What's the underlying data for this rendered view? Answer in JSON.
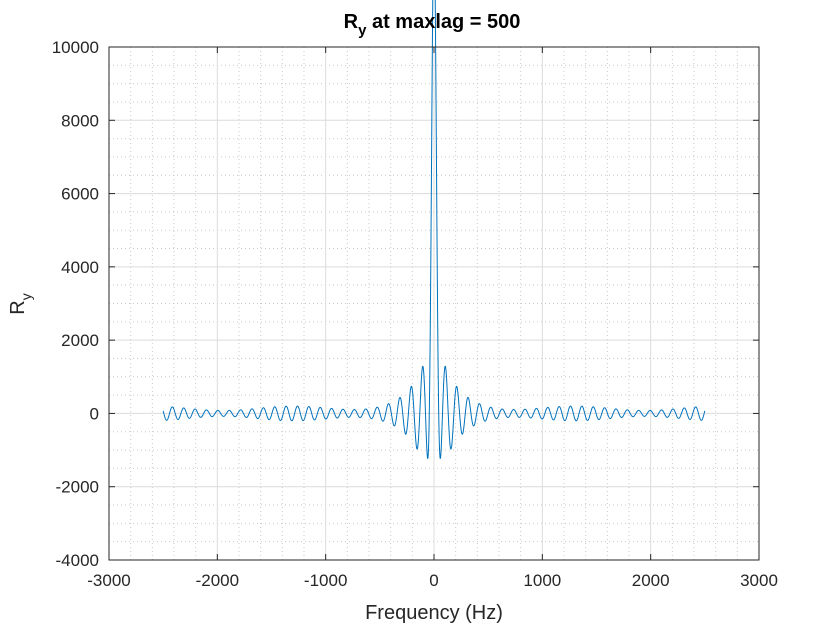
{
  "chart_data": {
    "type": "line",
    "title": {
      "main": "R",
      "sub": "y",
      "rest": " at maxlag = 500"
    },
    "xlabel": "Frequency (Hz)",
    "ylabel": {
      "main": "R",
      "sub": "y"
    },
    "xlim": [
      -3000,
      3000
    ],
    "ylim": [
      -4000,
      10000
    ],
    "xticks": [
      -3000,
      -2000,
      -1000,
      0,
      1000,
      2000,
      3000
    ],
    "xtick_labels": [
      "-3000",
      "-2000",
      "-1000",
      "0",
      "1000",
      "2000",
      "3000"
    ],
    "yticks": [
      -4000,
      -2000,
      0,
      2000,
      4000,
      6000,
      8000,
      10000
    ],
    "ytick_labels": [
      "-4000",
      "-2000",
      "0",
      "2000",
      "4000",
      "6000",
      "8000",
      "10000"
    ],
    "grid": "major and minor (dotted)",
    "line_color": "#0072BD",
    "series": [
      {
        "x_range": [
          -2500,
          2500
        ],
        "peak": {
          "x": 0,
          "y": 9800
        },
        "first_minima": [
          {
            "x": -60,
            "y": -2050
          },
          {
            "x": 60,
            "y": -2050
          }
        ],
        "side_peaks": [
          {
            "x": -120,
            "y": 1250
          },
          {
            "x": 120,
            "y": 1250
          }
        ],
        "ripple_period_hz": 105,
        "tail_ripple_amplitude": 200
      }
    ]
  }
}
